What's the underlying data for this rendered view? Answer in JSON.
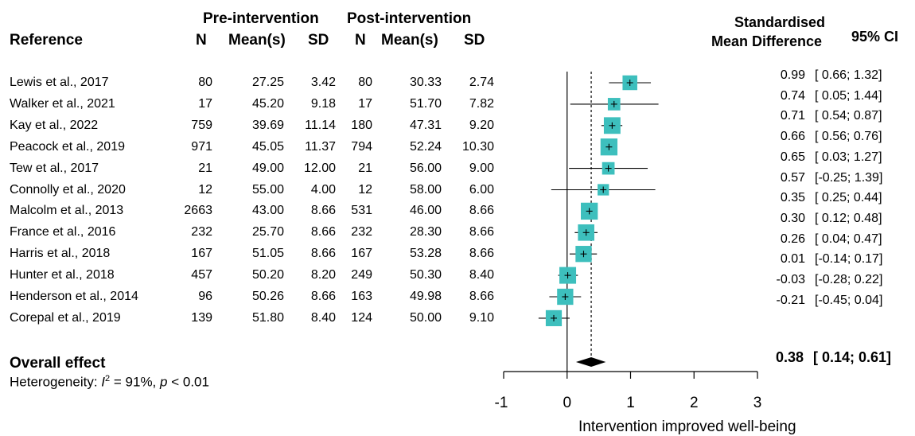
{
  "headers": {
    "reference": "Reference",
    "pre_group": "Pre-intervention",
    "post_group": "Post-intervention",
    "n": "N",
    "mean": "Mean(s)",
    "sd": "SD",
    "smd_line1": "Standardised",
    "smd_line2": "Mean Difference",
    "ci": "95% CI"
  },
  "overall": {
    "label": "Overall effect",
    "heterogeneity_prefix": "Heterogeneity: ",
    "i2_symbol": "I",
    "i2_sup": "2",
    "i2_value": " = 91%, ",
    "p_symbol": "p",
    "p_value": " < 0.01",
    "estimate_text": "0.38",
    "ci_text": "[ 0.14; 0.61]"
  },
  "chart_data": {
    "type": "forest",
    "xlabel": "Intervention improved well-being",
    "xlim": [
      -1,
      3
    ],
    "ticks": [
      -1,
      0,
      1,
      2,
      3
    ],
    "tick_labels": [
      "-1",
      "0",
      "1",
      "2",
      "3"
    ],
    "reference_line": 0,
    "overall": {
      "estimate": 0.38,
      "lower": 0.14,
      "upper": 0.61
    },
    "marker_color": "#3dbfbd",
    "diamond_color": "#000000",
    "studies": [
      {
        "name": "Lewis et al., 2017",
        "pre_n": "80",
        "pre_mean": "27.25",
        "pre_sd": "3.42",
        "post_n": "80",
        "post_mean": "30.33",
        "post_sd": "2.74",
        "smd": 0.99,
        "lower": 0.66,
        "upper": 1.32,
        "smd_text": "0.99",
        "ci_text": "[ 0.66; 1.32]",
        "weight": 0.75
      },
      {
        "name": "Walker et al., 2021",
        "pre_n": "17",
        "pre_mean": "45.20",
        "pre_sd": "9.18",
        "post_n": "17",
        "post_mean": "51.70",
        "post_sd": "7.82",
        "smd": 0.74,
        "lower": 0.05,
        "upper": 1.44,
        "smd_text": "0.74",
        "ci_text": "[ 0.05; 1.44]",
        "weight": 0.55
      },
      {
        "name": "Kay et al., 2022",
        "pre_n": "759",
        "pre_mean": "39.69",
        "pre_sd": "11.14",
        "post_n": "180",
        "post_mean": "47.31",
        "post_sd": "9.20",
        "smd": 0.71,
        "lower": 0.54,
        "upper": 0.87,
        "smd_text": "0.71",
        "ci_text": "[ 0.54; 0.87]",
        "weight": 0.92
      },
      {
        "name": "Peacock et al., 2019",
        "pre_n": "971",
        "pre_mean": "45.05",
        "pre_sd": "11.37",
        "post_n": "794",
        "post_mean": "52.24",
        "post_sd": "10.30",
        "smd": 0.66,
        "lower": 0.56,
        "upper": 0.76,
        "smd_text": "0.66",
        "ci_text": "[ 0.56; 0.76]",
        "weight": 0.95
      },
      {
        "name": "Tew et al., 2017",
        "pre_n": "21",
        "pre_mean": "49.00",
        "pre_sd": "12.00",
        "post_n": "21",
        "post_mean": "56.00",
        "post_sd": "9.00",
        "smd": 0.65,
        "lower": 0.03,
        "upper": 1.27,
        "smd_text": "0.65",
        "ci_text": "[ 0.03; 1.27]",
        "weight": 0.55
      },
      {
        "name": "Connolly et al., 2020",
        "pre_n": "12",
        "pre_mean": "55.00",
        "pre_sd": "4.00",
        "post_n": "12",
        "post_mean": "58.00",
        "post_sd": "6.00",
        "smd": 0.57,
        "lower": -0.25,
        "upper": 1.39,
        "smd_text": "0.57",
        "ci_text": "[-0.25; 1.39]",
        "weight": 0.45
      },
      {
        "name": "Malcolm et al., 2013",
        "pre_n": "2663",
        "pre_mean": "43.00",
        "pre_sd": "8.66",
        "post_n": "531",
        "post_mean": "46.00",
        "post_sd": "8.66",
        "smd": 0.35,
        "lower": 0.25,
        "upper": 0.44,
        "smd_text": "0.35",
        "ci_text": "[ 0.25; 0.44]",
        "weight": 0.95
      },
      {
        "name": "France et al., 2016",
        "pre_n": "232",
        "pre_mean": "25.70",
        "pre_sd": "8.66",
        "post_n": "232",
        "post_mean": "28.30",
        "post_sd": "8.66",
        "smd": 0.3,
        "lower": 0.12,
        "upper": 0.48,
        "smd_text": "0.30",
        "ci_text": "[ 0.12; 0.48]",
        "weight": 0.9
      },
      {
        "name": "Harris et al., 2018",
        "pre_n": "167",
        "pre_mean": "51.05",
        "pre_sd": "8.66",
        "post_n": "167",
        "post_mean": "53.28",
        "post_sd": "8.66",
        "smd": 0.26,
        "lower": 0.04,
        "upper": 0.47,
        "smd_text": "0.26",
        "ci_text": "[ 0.04; 0.47]",
        "weight": 0.88
      },
      {
        "name": "Hunter et al., 2018",
        "pre_n": "457",
        "pre_mean": "50.20",
        "pre_sd": "8.20",
        "post_n": "249",
        "post_mean": "50.30",
        "post_sd": "8.40",
        "smd": 0.01,
        "lower": -0.14,
        "upper": 0.17,
        "smd_text": "0.01",
        "ci_text": "[-0.14; 0.17]",
        "weight": 0.93
      },
      {
        "name": "Henderson et al., 2014",
        "pre_n": "96",
        "pre_mean": "50.26",
        "pre_sd": "8.66",
        "post_n": "163",
        "post_mean": "49.98",
        "post_sd": "8.66",
        "smd": -0.03,
        "lower": -0.28,
        "upper": 0.22,
        "smd_text": "-0.03",
        "ci_text": "[-0.28; 0.22]",
        "weight": 0.88
      },
      {
        "name": "Corepal et al., 2019",
        "pre_n": "139",
        "pre_mean": "51.80",
        "pre_sd": "8.40",
        "post_n": "124",
        "post_mean": "50.00",
        "post_sd": "9.10",
        "smd": -0.21,
        "lower": -0.45,
        "upper": 0.04,
        "smd_text": "-0.21",
        "ci_text": "[-0.45; 0.04]",
        "weight": 0.87
      }
    ]
  }
}
